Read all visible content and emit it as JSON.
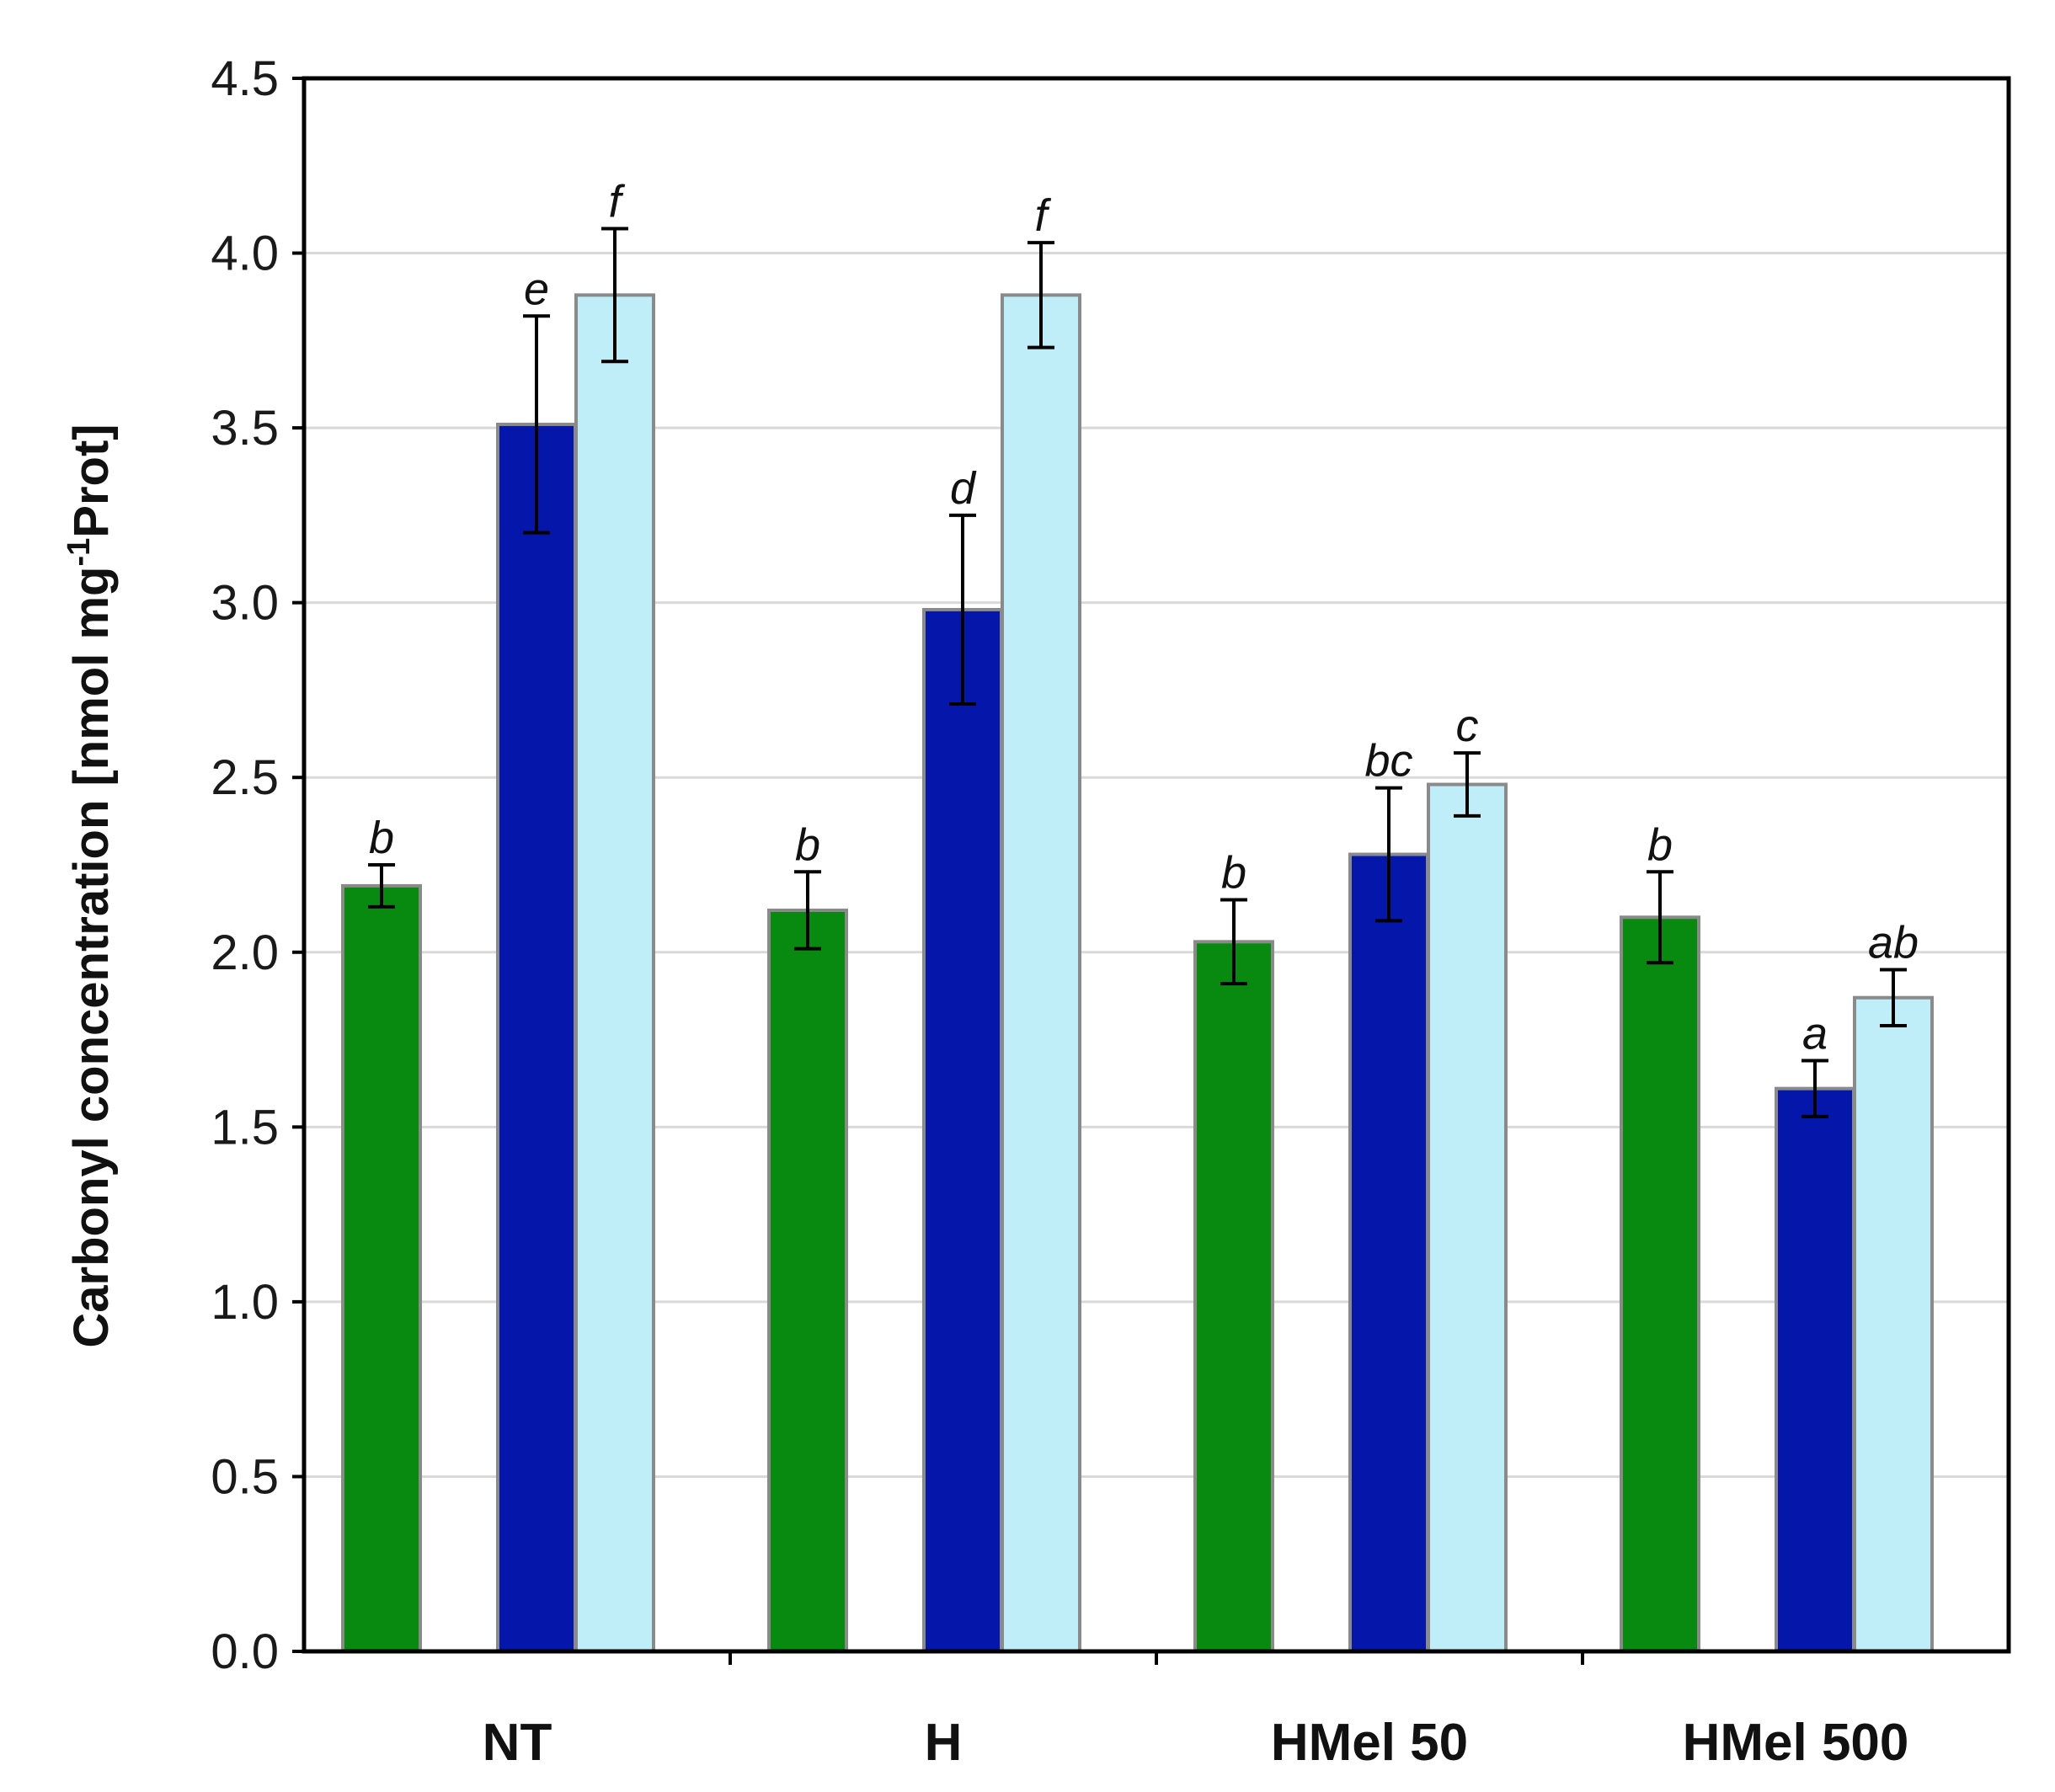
{
  "chart_data": {
    "type": "bar",
    "title": "",
    "xlabel": "",
    "ylabel": "Carbonyl concentration [nmol mg-1Prot]",
    "ylabel_parts": {
      "main": "Carbonyl concentration [nmol mg",
      "sup": "-1",
      "tail": "Prot]"
    },
    "ylim": [
      0,
      4.5
    ],
    "yticks": [
      "0.0",
      "0.5",
      "1.0",
      "1.5",
      "2.0",
      "2.5",
      "3.0",
      "3.5",
      "4.0",
      "4.5"
    ],
    "categories": [
      "NT",
      "H",
      "HMel 50",
      "HMel 500"
    ],
    "grid": true,
    "series": [
      {
        "name": "series 1",
        "color": "#078A0F",
        "values": [
          2.19,
          2.12,
          2.03,
          2.1
        ],
        "errors": [
          0.06,
          0.11,
          0.12,
          0.13
        ],
        "labels": [
          "b",
          "b",
          "b",
          "b"
        ]
      },
      {
        "name": "series 2",
        "color": "#0516AA",
        "values": [
          3.51,
          2.98,
          2.28,
          1.61
        ],
        "errors": [
          0.31,
          0.27,
          0.19,
          0.08
        ],
        "labels": [
          "e",
          "d",
          "bc",
          "a"
        ]
      },
      {
        "name": "series 3",
        "color": "#BFEDF8",
        "values": [
          3.88,
          3.88,
          2.48,
          1.87
        ],
        "errors": [
          0.19,
          0.15,
          0.09,
          0.08
        ],
        "labels": [
          "f",
          "f",
          "c",
          "ab"
        ]
      }
    ]
  }
}
